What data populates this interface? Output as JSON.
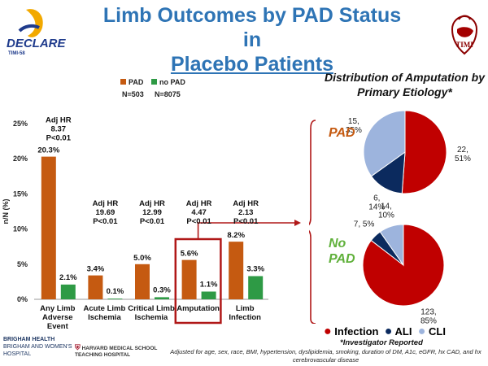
{
  "header": {
    "title_line1": "Limb Outcomes by PAD Status in",
    "title_line2": "Placebo Patients",
    "logo_left_text": "DECLARE",
    "logo_left_sub": "TIMI-58",
    "logo_right_text": "TIMI"
  },
  "colors": {
    "pad": "#c55a11",
    "no_pad": "#2e9a45",
    "infection": "#c00000",
    "ali": "#0b2a5e",
    "cli": "#9db4dd",
    "title": "#2e74b5",
    "group_label": "#c55a11",
    "group_label_nopad": "#5fb03a"
  },
  "chart_data": [
    {
      "type": "bar",
      "ylabel": "n/N (%)",
      "ylim": [
        0,
        25
      ],
      "yticks": [
        "0%",
        "5%",
        "10%",
        "15%",
        "20%",
        "25%"
      ],
      "legend": {
        "position": "top",
        "n_pad": "N=503",
        "n_nopad": "N=8075"
      },
      "categories": [
        "Any Limb Adverse Event",
        "Acute Limb Ischemia",
        "Critical Limb Ischemia",
        "Amputation",
        "Limb Infection"
      ],
      "category_lines": [
        [
          "Any Limb",
          "Adverse",
          "Event"
        ],
        [
          "Acute Limb",
          "Ischemia"
        ],
        [
          "Critical Limb",
          "Ischemia"
        ],
        [
          "Amputation"
        ],
        [
          "Limb",
          "Infection"
        ]
      ],
      "series": [
        {
          "name": "PAD",
          "values": [
            20.3,
            3.4,
            5.0,
            5.6,
            8.2
          ],
          "labels": [
            "20.3%",
            "3.4%",
            "5.0%",
            "5.6%",
            "8.2%"
          ]
        },
        {
          "name": "no PAD",
          "values": [
            2.1,
            0.1,
            0.3,
            1.1,
            3.3
          ],
          "labels": [
            "2.1%",
            "0.1%",
            "0.3%",
            "1.1%",
            "3.3%"
          ]
        }
      ],
      "annotations": [
        [
          "Adj HR",
          "8.37",
          "P<0.01"
        ],
        [
          "Adj HR",
          "19.69",
          "P<0.01"
        ],
        [
          "Adj HR",
          "12.99",
          "P<0.01"
        ],
        [
          "Adj HR",
          "4.47",
          "P<0.01"
        ],
        [
          "Adj HR",
          "2.13",
          "P<0.01"
        ]
      ],
      "highlight_category": "Amputation"
    },
    {
      "type": "pie",
      "title": "Distribution of Amputation by Primary Etiology*",
      "legend": [
        "Infection",
        "ALI",
        "CLI"
      ],
      "groups": [
        {
          "label": "PAD",
          "values": [
            22,
            6,
            15
          ],
          "labels": [
            [
              "22,",
              "51%"
            ],
            [
              "6,",
              "14%"
            ],
            [
              "15,",
              "35%"
            ]
          ]
        },
        {
          "label": "No PAD",
          "values": [
            123,
            7,
            14
          ],
          "labels": [
            [
              "123,",
              "85%"
            ],
            [
              "7, 5%"
            ],
            [
              "14,",
              "10%"
            ]
          ]
        }
      ]
    }
  ],
  "notes": {
    "investigator": "*Investigator Reported",
    "adjusted": "Adjusted for age, sex, race, BMI, hypertension, dyslipidemia, smoking, duration of DM, A1c, eGFR, hx CAD, and hx cerebrovascular disease"
  },
  "footer": {
    "brigham_line1": "BRIGHAM HEALTH",
    "brigham_line2": "BRIGHAM AND WOMEN'S HOSPITAL",
    "harvard": "HARVARD MEDICAL SCHOOL TEACHING HOSPITAL"
  }
}
